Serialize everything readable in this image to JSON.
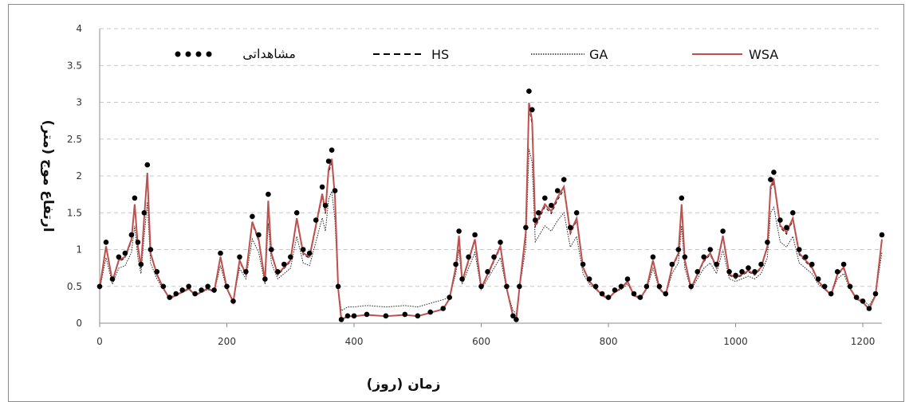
{
  "chart_data": {
    "type": "line",
    "xlabel": "زمان (روز)",
    "ylabel": "ارتفاع موج (متر)",
    "xlim": [
      0,
      1230
    ],
    "ylim": [
      0,
      4
    ],
    "x_ticks": [
      0,
      200,
      400,
      600,
      800,
      1000,
      1200
    ],
    "y_ticks": [
      0,
      0.5,
      1,
      1.5,
      2,
      2.5,
      3,
      3.5,
      4
    ],
    "y_tick_labels": [
      "0",
      "0.5",
      "1",
      "1.5",
      "2",
      "2.5",
      "3",
      "3.5",
      "4"
    ],
    "grid": "horizontal-dashed",
    "legend_position": "top",
    "series": [
      {
        "name": "مشاهداتی",
        "style": "markers",
        "color": "#000000",
        "x": [
          0,
          10,
          20,
          30,
          40,
          50,
          55,
          60,
          65,
          70,
          75,
          80,
          90,
          100,
          110,
          120,
          130,
          140,
          150,
          160,
          170,
          180,
          190,
          200,
          210,
          220,
          230,
          240,
          250,
          260,
          265,
          270,
          280,
          290,
          300,
          310,
          320,
          330,
          340,
          350,
          355,
          360,
          365,
          370,
          375,
          380,
          390,
          400,
          420,
          450,
          480,
          500,
          520,
          540,
          550,
          560,
          565,
          570,
          580,
          590,
          600,
          610,
          620,
          630,
          640,
          650,
          655,
          660,
          670,
          675,
          680,
          685,
          690,
          700,
          710,
          720,
          730,
          740,
          750,
          760,
          770,
          780,
          790,
          800,
          810,
          820,
          830,
          840,
          850,
          860,
          870,
          880,
          890,
          900,
          910,
          915,
          920,
          930,
          940,
          950,
          960,
          970,
          980,
          990,
          1000,
          1010,
          1020,
          1030,
          1040,
          1050,
          1055,
          1060,
          1070,
          1080,
          1090,
          1100,
          1110,
          1120,
          1130,
          1140,
          1150,
          1160,
          1170,
          1180,
          1190,
          1200,
          1210,
          1220,
          1230
        ],
        "values": [
          0.5,
          1.1,
          0.6,
          0.9,
          0.95,
          1.2,
          1.7,
          1.1,
          0.8,
          1.5,
          2.15,
          1.0,
          0.7,
          0.5,
          0.35,
          0.4,
          0.45,
          0.5,
          0.4,
          0.45,
          0.5,
          0.45,
          0.95,
          0.5,
          0.3,
          0.9,
          0.7,
          1.45,
          1.2,
          0.6,
          1.75,
          1.0,
          0.7,
          0.8,
          0.9,
          1.5,
          1.0,
          0.95,
          1.4,
          1.85,
          1.6,
          2.2,
          2.35,
          1.8,
          0.5,
          0.05,
          0.1,
          0.1,
          0.12,
          0.1,
          0.12,
          0.1,
          0.15,
          0.2,
          0.35,
          0.8,
          1.25,
          0.6,
          0.9,
          1.2,
          0.5,
          0.7,
          0.9,
          1.1,
          0.5,
          0.1,
          0.05,
          0.5,
          1.3,
          3.15,
          2.9,
          1.4,
          1.5,
          1.7,
          1.6,
          1.8,
          1.95,
          1.3,
          1.5,
          0.8,
          0.6,
          0.5,
          0.4,
          0.35,
          0.45,
          0.5,
          0.6,
          0.4,
          0.35,
          0.5,
          0.9,
          0.5,
          0.4,
          0.8,
          1.0,
          1.7,
          0.9,
          0.5,
          0.7,
          0.9,
          1.0,
          0.8,
          1.25,
          0.7,
          0.65,
          0.7,
          0.75,
          0.7,
          0.8,
          1.1,
          1.95,
          2.05,
          1.4,
          1.3,
          1.5,
          1.0,
          0.9,
          0.8,
          0.6,
          0.5,
          0.4,
          0.7,
          0.8,
          0.5,
          0.35,
          0.3,
          0.2,
          0.4,
          1.2
        ]
      },
      {
        "name": "HS",
        "style": "dashed",
        "color": "#000000"
      },
      {
        "name": "GA",
        "style": "dotted",
        "color": "#000000"
      },
      {
        "name": "WSA",
        "style": "solid",
        "color": "#c0504d"
      }
    ]
  }
}
